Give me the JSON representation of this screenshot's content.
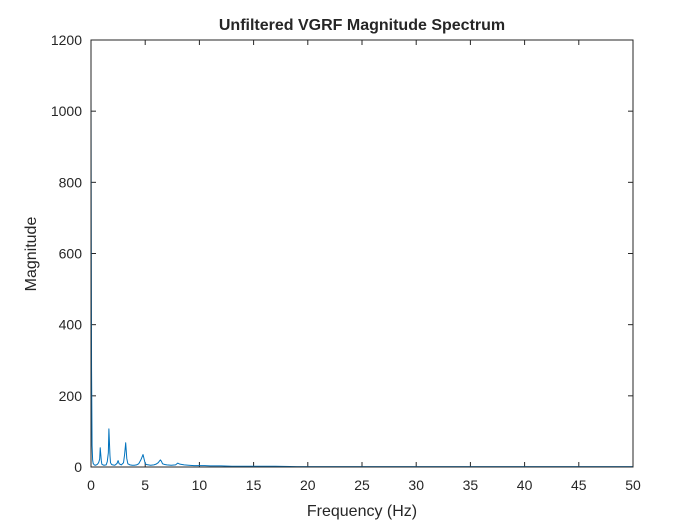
{
  "chart_data": {
    "type": "line",
    "title": "Unfiltered VGRF Magnitude Spectrum",
    "xlabel": "Frequency (Hz)",
    "ylabel": "Magnitude",
    "xlim": [
      0,
      50
    ],
    "ylim": [
      0,
      1200
    ],
    "xticks": [
      "0",
      "5",
      "10",
      "15",
      "20",
      "25",
      "30",
      "35",
      "40",
      "45",
      "50"
    ],
    "yticks": [
      "0",
      "200",
      "400",
      "600",
      "800",
      "1000",
      "1200"
    ],
    "grid": false,
    "box": true,
    "line_color": "#0072BD",
    "series": [
      {
        "x": [
          0,
          0.05,
          0.1,
          0.15,
          0.2,
          0.3,
          0.4,
          0.5,
          0.6,
          0.7,
          0.8,
          0.85,
          0.95,
          1.0,
          1.1,
          1.2,
          1.4,
          1.5,
          1.6,
          1.65,
          1.75,
          1.8,
          1.9,
          2.0,
          2.2,
          2.4,
          2.5,
          2.6,
          2.8,
          3.0,
          3.1,
          3.2,
          3.3,
          3.4,
          3.6,
          3.8,
          4.0,
          4.2,
          4.4,
          4.6,
          4.8,
          4.9,
          5.0,
          5.1,
          5.3,
          5.5,
          5.8,
          6.0,
          6.2,
          6.4,
          6.5,
          6.6,
          6.8,
          7.0,
          7.4,
          7.8,
          8.0,
          8.2,
          8.6,
          9.0,
          9.5,
          10.0,
          10.5,
          11.0,
          12.0,
          13.0,
          14.0,
          15.0,
          17.0,
          19.0,
          21.0,
          23.0,
          25.0,
          27.0,
          29.0,
          31.0,
          33.0,
          35.0,
          37.0,
          39.0,
          41.0,
          43.0,
          45.0,
          47.0,
          49.0,
          50.0
        ],
        "y": [
          1070,
          280,
          60,
          20,
          10,
          6,
          5,
          6,
          8,
          12,
          22,
          54,
          18,
          8,
          6,
          5,
          6,
          15,
          40,
          107,
          32,
          12,
          7,
          6,
          5,
          10,
          18,
          9,
          6,
          12,
          35,
          68,
          24,
          9,
          6,
          5,
          5,
          6,
          9,
          20,
          35,
          22,
          10,
          7,
          6,
          5,
          6,
          8,
          12,
          20,
          16,
          9,
          7,
          6,
          5,
          6,
          11,
          8,
          6,
          5,
          4,
          4,
          4,
          3,
          3,
          2,
          2,
          2,
          2,
          1,
          1,
          1,
          1,
          1,
          1,
          1,
          1,
          1,
          1,
          1,
          1,
          1,
          1,
          1,
          1,
          1
        ]
      }
    ]
  }
}
